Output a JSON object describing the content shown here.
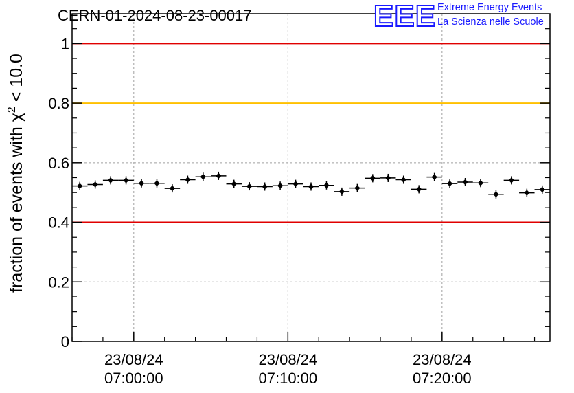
{
  "header": {
    "title": "CERN-01-2024-08-23-00017",
    "logo_text": "EEE",
    "logo_line1": "Extreme Energy Events",
    "logo_line2": "La Scienza nelle Scuole"
  },
  "colors": {
    "red_line": "#e00000",
    "yellow_line": "#ffc000",
    "logo_blue": "#1a1aff",
    "marker": "#000000",
    "grid": "#a0a0a0"
  },
  "chart_data": {
    "type": "scatter",
    "ylabel_main": "fraction of events with χ",
    "ylabel_sup": "2",
    "ylabel_tail": " < 10.0",
    "xlabel": "",
    "ylim": [
      0,
      1.1
    ],
    "yticks": [
      "0",
      "0.2",
      "0.4",
      "0.6",
      "0.8",
      "1"
    ],
    "ytick_values": [
      0,
      0.2,
      0.4,
      0.6,
      0.8,
      1.0
    ],
    "xlim_minutes": [
      -4.0,
      27.0
    ],
    "xticks": [
      {
        "minute": 0,
        "date": "23/08/24",
        "time": "07:00:00"
      },
      {
        "minute": 10,
        "date": "23/08/24",
        "time": "07:10:00"
      },
      {
        "minute": 20,
        "date": "23/08/24",
        "time": "07:20:00"
      }
    ],
    "reference_lines": [
      {
        "y": 1.0,
        "color": "red"
      },
      {
        "y": 0.8,
        "color": "yellow"
      },
      {
        "y": 0.4,
        "color": "red"
      }
    ],
    "grid": true,
    "bin_width_minutes": 1.0,
    "x_minutes": [
      -3.5,
      -2.5,
      -1.5,
      -0.5,
      0.5,
      1.5,
      2.5,
      3.5,
      4.5,
      5.5,
      6.5,
      7.5,
      8.5,
      9.5,
      10.5,
      11.5,
      12.5,
      13.5,
      14.5,
      15.5,
      16.5,
      17.5,
      18.5,
      19.5,
      20.5,
      21.5,
      22.5,
      23.5,
      24.5,
      25.5,
      26.5
    ],
    "values": [
      0.522,
      0.527,
      0.541,
      0.541,
      0.531,
      0.531,
      0.514,
      0.543,
      0.553,
      0.556,
      0.529,
      0.521,
      0.52,
      0.523,
      0.529,
      0.52,
      0.524,
      0.503,
      0.515,
      0.548,
      0.549,
      0.543,
      0.511,
      0.552,
      0.53,
      0.535,
      0.532,
      0.494,
      0.541,
      0.499,
      0.51
    ]
  }
}
